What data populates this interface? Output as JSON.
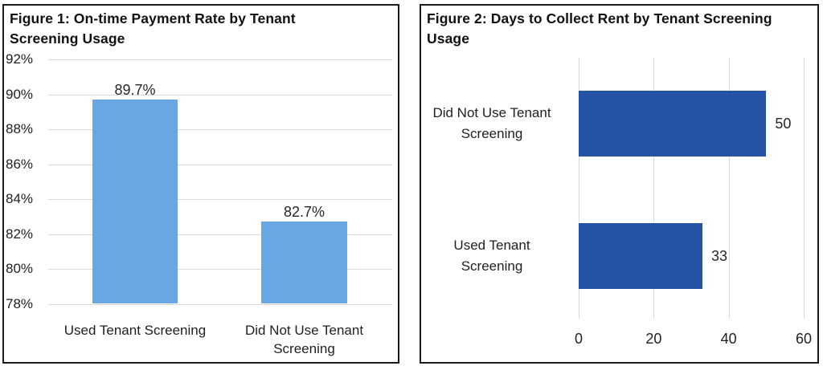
{
  "colors": {
    "background": "#ffffff",
    "panel_border": "#1b1b1b",
    "gridline": "#d9d9d9",
    "text": "#1f1f1f",
    "figure1_bar": "#68a7e2",
    "figure2_bar": "#2554a6"
  },
  "chart_data": [
    {
      "id": "figure-1",
      "type": "bar",
      "orientation": "vertical",
      "title": "Figure 1: On-time Payment Rate by Tenant Screening Usage",
      "categories": [
        "Used Tenant Screening",
        "Did Not Use Tenant\nScreening"
      ],
      "values": [
        89.7,
        82.7
      ],
      "value_labels": [
        "89.7%",
        "82.7%"
      ],
      "ylim": [
        78,
        92
      ],
      "yticks": [
        92,
        90,
        88,
        86,
        84,
        82,
        80,
        78
      ],
      "ytick_labels": [
        "92%",
        "90%",
        "88%",
        "86%",
        "84%",
        "82%",
        "80%",
        "78%"
      ],
      "xlabel": "",
      "ylabel": "",
      "grid": "horizontal",
      "legend": "none",
      "bar_color": "#68a7e2"
    },
    {
      "id": "figure-2",
      "type": "bar",
      "orientation": "horizontal",
      "title": "Figure 2: Days to Collect Rent by Tenant Screening Usage",
      "categories": [
        "Did Not Use Tenant\nScreening",
        "Used Tenant\nScreening"
      ],
      "values": [
        50,
        33
      ],
      "value_labels": [
        "50",
        "33"
      ],
      "xlim": [
        0,
        60
      ],
      "xticks": [
        0,
        20,
        40,
        60
      ],
      "xtick_labels": [
        "0",
        "20",
        "40",
        "60"
      ],
      "xlabel": "",
      "ylabel": "",
      "grid": "vertical",
      "legend": "none",
      "bar_color": "#2554a6"
    }
  ]
}
